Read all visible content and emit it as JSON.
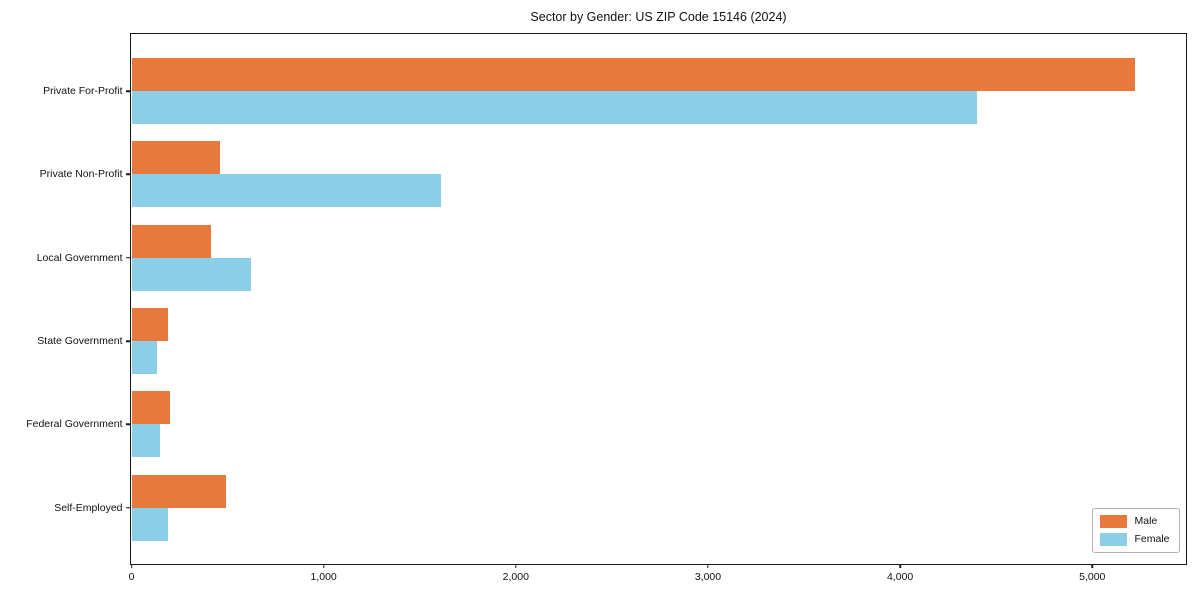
{
  "chart_data": {
    "type": "bar",
    "orientation": "horizontal",
    "title": "Sector by Gender: US ZIP Code 15146 (2024)",
    "categories": [
      "Private For-Profit",
      "Private Non-Profit",
      "Local Government",
      "State Government",
      "Federal Government",
      "Self-Employed"
    ],
    "series": [
      {
        "name": "Male",
        "color": "#E8793D",
        "values": [
          5220,
          460,
          415,
          190,
          200,
          490
        ]
      },
      {
        "name": "Female",
        "color": "#8ACEE8",
        "values": [
          4400,
          1610,
          620,
          135,
          150,
          190
        ]
      }
    ],
    "xlabel": "",
    "ylabel": "",
    "xlim": [
      0,
      5480
    ],
    "xticks": [
      0,
      1000,
      2000,
      3000,
      4000,
      5000
    ],
    "xtick_labels": [
      "0",
      "1,000",
      "2,000",
      "3,000",
      "4,000",
      "5,000"
    ],
    "grid": false,
    "legend_position": "lower right",
    "frame": true
  }
}
